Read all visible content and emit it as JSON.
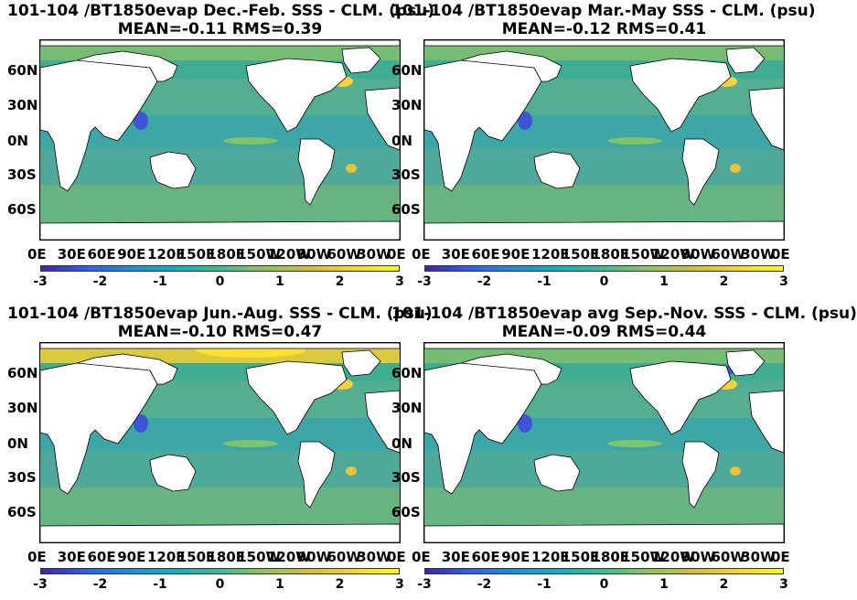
{
  "panels": [
    {
      "title_line1": "101-104 /BT1850evap  Dec.-Feb. SSS - CLM. (psu)",
      "title_line2": "MEAN=-0.11   RMS=0.39"
    },
    {
      "title_line1": "101-104 /BT1850evap Mar.-May SSS - CLM. (psu)",
      "title_line2": "MEAN=-0.12   RMS=0.41"
    },
    {
      "title_line1": "101-104 /BT1850evap Jun.-Aug. SSS - CLM. (psu)",
      "title_line2": "MEAN=-0.10   RMS=0.47"
    },
    {
      "title_line1": "101-104 /BT1850evap avg Sep.-Nov. SSS - CLM. (psu)",
      "title_line2": "MEAN=-0.09   RMS=0.44"
    }
  ],
  "chart_data": [
    {
      "type": "heatmap",
      "title": "101-104 /BT1850evap  Dec.-Feb. SSS - CLM. (psu)",
      "subtitle": "MEAN=-0.11   RMS=0.39",
      "x_ticks": [
        "0E",
        "30E",
        "60E",
        "90E",
        "120E",
        "150E",
        "180E",
        "150W",
        "120W",
        "90W",
        "60W",
        "30W",
        "0E"
      ],
      "y_ticks": [
        "60N",
        "30N",
        "0N",
        "30S",
        "60S"
      ],
      "colorbar": {
        "ticks": [
          "-3",
          "-2",
          "-1",
          "0",
          "1",
          "2",
          "3"
        ],
        "range": [
          -3,
          3
        ],
        "colormap": "parula"
      },
      "stats": {
        "mean": -0.11,
        "rms": 0.39
      }
    },
    {
      "type": "heatmap",
      "title": "101-104 /BT1850evap Mar.-May SSS - CLM. (psu)",
      "subtitle": "MEAN=-0.12   RMS=0.41",
      "x_ticks": [
        "0E",
        "30E",
        "60E",
        "90E",
        "120E",
        "150E",
        "180E",
        "150W",
        "120W",
        "90W",
        "60W",
        "30W",
        "0E"
      ],
      "y_ticks": [
        "60N",
        "30N",
        "0N",
        "30S",
        "60S"
      ],
      "colorbar": {
        "ticks": [
          "-3",
          "-2",
          "-1",
          "0",
          "1",
          "2",
          "3"
        ],
        "range": [
          -3,
          3
        ],
        "colormap": "parula"
      },
      "stats": {
        "mean": -0.12,
        "rms": 0.41
      }
    },
    {
      "type": "heatmap",
      "title": "101-104 /BT1850evap Jun.-Aug. SSS - CLM. (psu)",
      "subtitle": "MEAN=-0.10   RMS=0.47",
      "x_ticks": [
        "0E",
        "30E",
        "60E",
        "90E",
        "120E",
        "150E",
        "180E",
        "150W",
        "120W",
        "90W",
        "60W",
        "30W",
        "0E"
      ],
      "y_ticks": [
        "60N",
        "30N",
        "0N",
        "30S",
        "60S"
      ],
      "colorbar": {
        "ticks": [
          "-3",
          "-2",
          "-1",
          "0",
          "1",
          "2",
          "3"
        ],
        "range": [
          -3,
          3
        ],
        "colormap": "parula"
      },
      "stats": {
        "mean": -0.1,
        "rms": 0.47
      }
    },
    {
      "type": "heatmap",
      "title": "101-104 /BT1850evap avg Sep.-Nov. SSS - CLM. (psu)",
      "subtitle": "MEAN=-0.09   RMS=0.44",
      "x_ticks": [
        "0E",
        "30E",
        "60E",
        "90E",
        "120E",
        "150E",
        "180E",
        "150W",
        "120W",
        "90W",
        "60W",
        "30W",
        "0E"
      ],
      "y_ticks": [
        "60N",
        "30N",
        "0N",
        "30S",
        "60S"
      ],
      "colorbar": {
        "ticks": [
          "-3",
          "-2",
          "-1",
          "0",
          "1",
          "2",
          "3"
        ],
        "range": [
          -3,
          3
        ],
        "colormap": "parula"
      },
      "stats": {
        "mean": -0.09,
        "rms": 0.44
      }
    }
  ],
  "colors": {
    "ocean": "#4fa99a",
    "land": "#ffffff",
    "coast": "#000000",
    "high": "#f9fb15",
    "low": "#3d26a8"
  }
}
